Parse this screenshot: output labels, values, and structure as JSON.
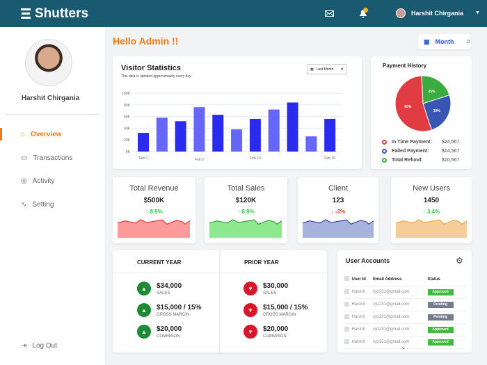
{
  "header": {
    "brand": "Shutters",
    "user": "Harshit Chirgania",
    "notification_count": "1",
    "icons": [
      "menu-stack-icon",
      "mail-icon",
      "bell-icon",
      "chevron-down-icon"
    ]
  },
  "sidebar": {
    "name": "Harshit Chirgania",
    "items": [
      {
        "label": "Overview",
        "icon": "home-icon",
        "active": true
      },
      {
        "label": "Transactions",
        "icon": "card-icon"
      },
      {
        "label": "Activity",
        "icon": "activity-icon"
      },
      {
        "label": "Setting",
        "icon": "pulse-icon"
      }
    ],
    "logout": "Log Out"
  },
  "greeting": "Hello Admin !!",
  "period_select": "Month",
  "accent": "#ee7b18",
  "visitor": {
    "title": "Visitor Statistics",
    "subtitle": "This data is updated approximately every day.",
    "range": "Last Month"
  },
  "chart_data": {
    "type": "bar",
    "yticks": [
      "0K",
      "20K",
      "40K",
      "60K",
      "80K",
      "100K"
    ],
    "ylim": [
      0,
      100
    ],
    "xticks": [
      {
        "label": "Feb 1",
        "index": 0
      },
      {
        "label": "Feb 5",
        "index": 3
      },
      {
        "label": "Feb 10",
        "index": 6
      },
      {
        "label": "Feb 15",
        "index": 10
      }
    ],
    "values": [
      32,
      58,
      52,
      76,
      63,
      38,
      56,
      72,
      84,
      26,
      56
    ],
    "colors": [
      "#2b2bf0",
      "#6666f7"
    ],
    "grid": true
  },
  "payment": {
    "title": "Payment History",
    "slices": [
      {
        "label": "In Time Payment:",
        "pct": "65%",
        "value": "$24,567",
        "color": "#e13c42",
        "share": 65
      },
      {
        "label": "Failed Payment:",
        "pct": "30%",
        "value": "$14,567",
        "color": "#3a56b5",
        "share": 30
      },
      {
        "label": "Total Refund:",
        "pct": "25%",
        "value": "$10,567",
        "color": "#3aab3e",
        "share": 25
      }
    ]
  },
  "stats": [
    {
      "title": "Total Revenue",
      "value": "$500K",
      "change": "↑ 8.9%",
      "up": true,
      "line": "#e02424",
      "fill": "#ff9a9a"
    },
    {
      "title": "Total Sales",
      "value": "$120K",
      "change": "↑ 8.9%",
      "up": true,
      "line": "#1f9a28",
      "fill": "#8ee98e"
    },
    {
      "title": "Client",
      "value": "123",
      "change": "↓ -3%",
      "up": false,
      "line": "#22349e",
      "fill": "#a7b3dc"
    },
    {
      "title": "New Users",
      "value": "1450",
      "change": "↑ 3.4%",
      "up": true,
      "line": "#f0a030",
      "fill": "#f6cd98"
    }
  ],
  "years": {
    "current": {
      "title": "CURRENT YEAR",
      "rows": [
        {
          "value": "$34,000",
          "label": "SALES"
        },
        {
          "value": "$15,000 / 15%",
          "label": "GROSS MARGIN"
        },
        {
          "value": "$20,000",
          "label": "COMMISON"
        }
      ]
    },
    "prior": {
      "title": "PRIOR YEAR",
      "rows": [
        {
          "value": "$30,000",
          "label": "SALES"
        },
        {
          "value": "$15,000 / 15%",
          "label": "GROSS MARGIN"
        },
        {
          "value": "$20,000",
          "label": "COMMISON"
        }
      ]
    }
  },
  "users": {
    "title": "User Accounts",
    "columns": [
      "User Id",
      "Email Address",
      "Status"
    ],
    "rows": [
      {
        "id": "Harshit",
        "email": "xyz231@gmail.com",
        "status": "Approved"
      },
      {
        "id": "Harshit",
        "email": "xyz231@gmail.com",
        "status": "Pending"
      },
      {
        "id": "Harshit",
        "email": "xyz231@gmail.com",
        "status": "Pending"
      },
      {
        "id": "Harshit",
        "email": "xyz231@gmail.com",
        "status": "Approved"
      },
      {
        "id": "Harshit",
        "email": "xyz231@gmail.com",
        "status": "Approved"
      }
    ],
    "status_colors": {
      "Approved": "#3dbb3d",
      "Pending": "#767a90"
    }
  }
}
